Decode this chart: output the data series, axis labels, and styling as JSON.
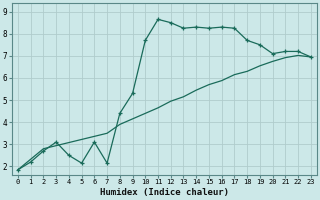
{
  "title": "",
  "xlabel": "Humidex (Indice chaleur)",
  "ylabel": "",
  "bg_color": "#cce8e8",
  "plot_bg_color": "#cce8e8",
  "grid_color": "#b0cccc",
  "line_color": "#1a6b5a",
  "xlim": [
    -0.5,
    23.5
  ],
  "ylim": [
    1.6,
    9.4
  ],
  "xticks": [
    0,
    1,
    2,
    3,
    4,
    5,
    6,
    7,
    8,
    9,
    10,
    11,
    12,
    13,
    14,
    15,
    16,
    17,
    18,
    19,
    20,
    21,
    22,
    23
  ],
  "yticks": [
    2,
    3,
    4,
    5,
    6,
    7,
    8,
    9
  ],
  "line1_x": [
    0,
    1,
    2,
    3,
    4,
    5,
    6,
    7,
    8,
    9,
    10,
    11,
    12,
    13,
    14,
    15,
    16,
    17,
    18,
    19,
    20,
    21,
    22,
    23
  ],
  "line1_y": [
    1.85,
    2.2,
    2.7,
    3.1,
    2.5,
    2.15,
    3.1,
    2.15,
    4.4,
    5.3,
    7.7,
    8.65,
    8.5,
    8.25,
    8.3,
    8.25,
    8.3,
    8.25,
    7.7,
    7.5,
    7.1,
    7.2,
    7.2,
    6.95
  ],
  "line2_x": [
    0,
    2,
    7,
    8,
    9,
    10,
    11,
    12,
    13,
    14,
    15,
    16,
    17,
    18,
    19,
    20,
    21,
    22,
    23
  ],
  "line2_y": [
    1.85,
    2.8,
    3.5,
    3.9,
    4.15,
    4.4,
    4.65,
    4.95,
    5.15,
    5.45,
    5.7,
    5.88,
    6.15,
    6.3,
    6.55,
    6.75,
    6.92,
    7.02,
    6.95
  ]
}
